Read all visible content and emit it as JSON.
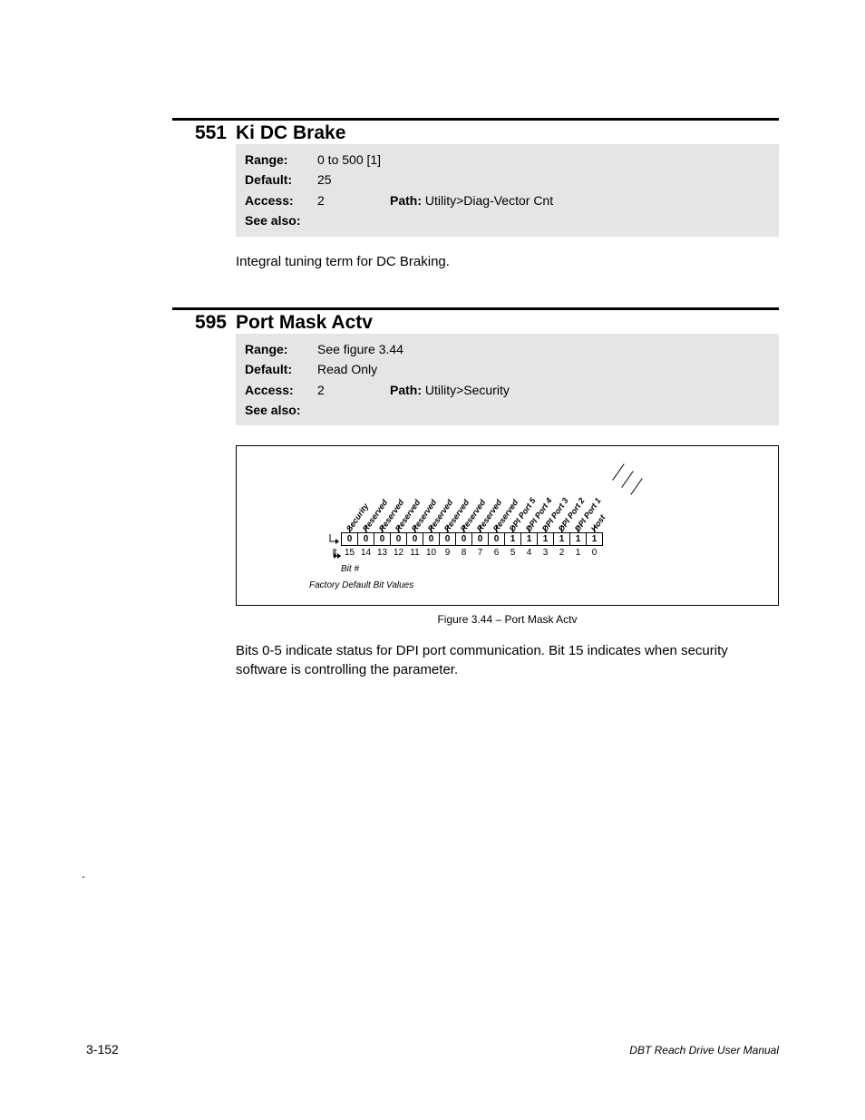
{
  "param551": {
    "number": "551",
    "title": "Ki DC Brake",
    "range_label": "Range:",
    "range": "0 to 500   [1]",
    "default_label": "Default:",
    "default": "25",
    "access_label": "Access:",
    "access": "2",
    "path_label": "Path: ",
    "path": "Utility>Diag-Vector Cnt",
    "seealso_label": "See also:",
    "body": "Integral tuning term for DC Braking."
  },
  "param595": {
    "number": "595",
    "title": "Port Mask Actv",
    "range_label": "Range:",
    "range": "See figure 3.44",
    "default_label": "Default:",
    "default": "Read Only",
    "access_label": "Access:",
    "access": "2",
    "path_label": "Path: ",
    "path": "Utility>Security",
    "seealso_label": "See also:",
    "caption": "Figure 3.44 – Port Mask Actv",
    "body": "Bits 0-5 indicate status for DPI port communication. Bit 15 indicates when security software is controlling the parameter."
  },
  "bitdiagram": {
    "labels": [
      "Security",
      "Reserved",
      "Reserved",
      "Reserved",
      "Reserved",
      "Reserved",
      "Reserved",
      "Reserved",
      "Reserved",
      "Reserved",
      "DPI Port 5",
      "DPI Port 4",
      "DPI Port 3",
      "DPI Port 2",
      "DPI Port 1",
      "Host"
    ],
    "values": [
      "0",
      "0",
      "0",
      "0",
      "0",
      "0",
      "0",
      "0",
      "0",
      "0",
      "1",
      "1",
      "1",
      "1",
      "1",
      "1"
    ],
    "numbers": [
      "15",
      "14",
      "13",
      "12",
      "11",
      "10",
      "9",
      "8",
      "7",
      "6",
      "5",
      "4",
      "3",
      "2",
      "1",
      "0"
    ],
    "bit_hash": "Bit #",
    "factory": "Factory Default Bit Values"
  },
  "dot": ".",
  "footer": {
    "page": "3-152",
    "manual": "DBT Reach Drive User Manual"
  },
  "colors": {
    "gray_bg": "#e5e5e5",
    "text": "#000000"
  }
}
